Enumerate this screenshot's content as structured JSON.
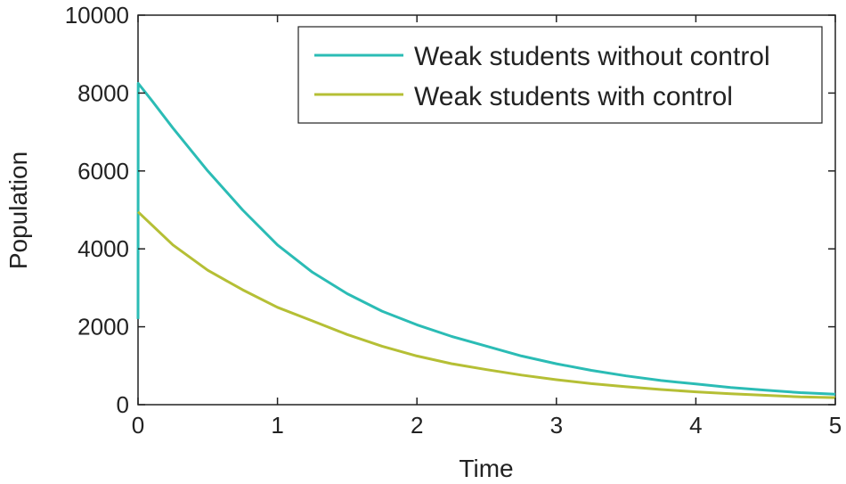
{
  "chart_data": {
    "type": "line",
    "title": "",
    "xlabel": "Time",
    "ylabel": "Population",
    "xlim": [
      0,
      5
    ],
    "ylim": [
      0,
      10000
    ],
    "x_ticks": [
      "0",
      "1",
      "2",
      "3",
      "4",
      "5"
    ],
    "y_ticks": [
      "0",
      "2000",
      "4000",
      "6000",
      "8000",
      "10000"
    ],
    "grid": false,
    "legend_position": "top-right",
    "series": [
      {
        "name": "Weak students without control",
        "color": "#2bbcb5",
        "x": [
          0,
          0.001,
          0.1,
          0.25,
          0.5,
          0.75,
          1.0,
          1.25,
          1.5,
          1.75,
          2.0,
          2.25,
          2.5,
          2.75,
          3.0,
          3.25,
          3.5,
          3.75,
          4.0,
          4.25,
          4.5,
          4.75,
          5.0
        ],
        "values": [
          2200,
          8250,
          7800,
          7100,
          6000,
          5000,
          4100,
          3400,
          2850,
          2400,
          2050,
          1750,
          1500,
          1250,
          1050,
          880,
          740,
          620,
          530,
          440,
          370,
          310,
          270
        ]
      },
      {
        "name": "Weak students with control",
        "color": "#b5bf35",
        "x": [
          0,
          0.25,
          0.5,
          0.75,
          1.0,
          1.25,
          1.5,
          1.75,
          2.0,
          2.25,
          2.5,
          2.75,
          3.0,
          3.25,
          3.5,
          3.75,
          4.0,
          4.25,
          4.5,
          4.75,
          5.0
        ],
        "values": [
          4950,
          4100,
          3450,
          2950,
          2500,
          2150,
          1800,
          1500,
          1250,
          1050,
          900,
          760,
          640,
          540,
          460,
          390,
          330,
          280,
          240,
          200,
          180
        ]
      }
    ]
  }
}
